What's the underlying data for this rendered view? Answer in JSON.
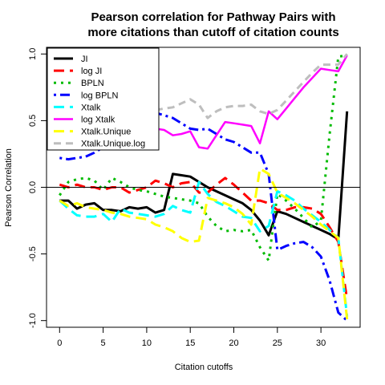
{
  "chart_data": {
    "type": "line",
    "title": "Pearson correlation for Pathway Pairs with",
    "title_line2": "more citations than cutoff of citation counts",
    "xlabel": "Citation cutoffs",
    "ylabel": "Pearson Correlation",
    "xlim": [
      -1.5,
      34.5
    ],
    "ylim": [
      -1.05,
      1.05
    ],
    "xticks": [
      0,
      5,
      10,
      15,
      20,
      25,
      30
    ],
    "yticks": [
      -1.0,
      -0.5,
      0.0,
      0.5,
      1.0
    ],
    "xtick_labels": [
      "0",
      "5",
      "10",
      "15",
      "20",
      "25",
      "30"
    ],
    "ytick_labels": [
      "-1.0",
      "-0.5",
      "0.0",
      "0.5",
      "1.0"
    ],
    "reference_line_y": 0,
    "legend_position": "top-left",
    "series": [
      {
        "name": "JI",
        "color": "#000000",
        "dash": "solid",
        "width": 3,
        "x": [
          0,
          1,
          2,
          3,
          4,
          5,
          6,
          7,
          8,
          9,
          10,
          11,
          12,
          13,
          14,
          15,
          16,
          17,
          18,
          19,
          20,
          21,
          22,
          23,
          24,
          25,
          26,
          27,
          28,
          29,
          30,
          31,
          32,
          33
        ],
        "y": [
          -0.1,
          -0.1,
          -0.16,
          -0.13,
          -0.12,
          -0.17,
          -0.17,
          -0.18,
          -0.15,
          -0.16,
          -0.15,
          -0.19,
          -0.17,
          0.1,
          0.09,
          0.08,
          0.04,
          0.0,
          -0.03,
          -0.06,
          -0.09,
          -0.12,
          -0.17,
          -0.25,
          -0.36,
          -0.18,
          -0.2,
          -0.23,
          -0.26,
          -0.29,
          -0.32,
          -0.35,
          -0.39,
          0.57
        ]
      },
      {
        "name": "log JI",
        "color": "#ff0000",
        "dash": "longdash",
        "width": 3,
        "x": [
          0,
          1,
          2,
          3,
          4,
          5,
          6,
          7,
          8,
          9,
          10,
          11,
          12,
          13,
          14,
          15,
          16,
          17,
          18,
          19,
          20,
          21,
          22,
          23,
          24,
          25,
          26,
          27,
          28,
          29,
          30,
          31,
          32,
          33
        ],
        "y": [
          0.02,
          0.0,
          0.02,
          0.0,
          0.0,
          -0.02,
          0.0,
          0.0,
          -0.04,
          -0.02,
          0.0,
          0.05,
          0.03,
          0.0,
          0.03,
          0.04,
          -0.04,
          -0.04,
          0.02,
          0.07,
          0.02,
          -0.04,
          -0.1,
          -0.1,
          -0.12,
          -0.17,
          -0.17,
          -0.15,
          -0.15,
          -0.16,
          -0.2,
          -0.3,
          -0.41,
          -0.84
        ]
      },
      {
        "name": "BPLN",
        "color": "#00bb00",
        "dash": "dot",
        "width": 3,
        "x": [
          0,
          1,
          2,
          3,
          4,
          5,
          6,
          7,
          8,
          9,
          10,
          11,
          12,
          13,
          14,
          15,
          16,
          17,
          18,
          19,
          20,
          21,
          22,
          23,
          24,
          25,
          26,
          27,
          28,
          29,
          30,
          31,
          32,
          33
        ],
        "y": [
          -0.06,
          0.04,
          0.06,
          0.07,
          0.05,
          -0.02,
          0.07,
          0.04,
          0.0,
          -0.02,
          -0.03,
          -0.05,
          -0.07,
          -0.08,
          -0.09,
          -0.1,
          -0.12,
          -0.22,
          -0.29,
          -0.33,
          -0.32,
          -0.33,
          -0.32,
          -0.45,
          -0.55,
          -0.05,
          -0.1,
          -0.16,
          -0.23,
          -0.3,
          -0.25,
          0.4,
          0.98,
          0.99
        ]
      },
      {
        "name": "log BPLN",
        "color": "#0000ff",
        "dash": "dotdash",
        "width": 3,
        "x": [
          0,
          1,
          2,
          3,
          4,
          5,
          6,
          7,
          8,
          9,
          10,
          11,
          12,
          13,
          14,
          15,
          16,
          17,
          18,
          19,
          20,
          21,
          22,
          23,
          24,
          25,
          26,
          27,
          28,
          29,
          30,
          31,
          32,
          33
        ],
        "y": [
          0.22,
          0.21,
          0.22,
          0.23,
          0.26,
          0.3,
          0.36,
          0.42,
          0.46,
          0.5,
          0.54,
          0.56,
          0.54,
          0.52,
          0.48,
          0.44,
          0.43,
          0.44,
          0.4,
          0.36,
          0.34,
          0.3,
          0.26,
          0.26,
          0.1,
          -0.47,
          -0.44,
          -0.42,
          -0.41,
          -0.45,
          -0.52,
          -0.7,
          -0.94,
          -1.0
        ]
      },
      {
        "name": "Xtalk",
        "color": "#00ffff",
        "dash": "longdash",
        "width": 3,
        "x": [
          0,
          1,
          2,
          3,
          4,
          5,
          6,
          7,
          8,
          9,
          10,
          11,
          12,
          13,
          14,
          15,
          16,
          17,
          18,
          19,
          20,
          21,
          22,
          23,
          24,
          25,
          26,
          27,
          28,
          29,
          30,
          31,
          32,
          33
        ],
        "y": [
          -0.1,
          -0.16,
          -0.21,
          -0.22,
          -0.22,
          -0.2,
          -0.26,
          -0.16,
          -0.19,
          -0.2,
          -0.21,
          -0.22,
          -0.2,
          -0.14,
          -0.17,
          -0.19,
          0.04,
          -0.05,
          -0.11,
          -0.14,
          -0.18,
          -0.22,
          -0.23,
          -0.33,
          -0.29,
          -0.03,
          -0.06,
          -0.1,
          -0.16,
          -0.21,
          -0.26,
          -0.32,
          -0.38,
          -0.97
        ]
      },
      {
        "name": "log Xtalk",
        "color": "#ff00ff",
        "dash": "solid",
        "width": 2.5,
        "x": [
          0,
          1,
          2,
          3,
          4,
          5,
          6,
          7,
          8,
          9,
          10,
          11,
          12,
          13,
          14,
          15,
          16,
          17,
          18,
          19,
          20,
          21,
          22,
          23,
          24,
          25,
          26,
          27,
          28,
          29,
          30,
          31,
          32,
          33
        ],
        "y": [
          0.55,
          0.55,
          0.55,
          0.54,
          0.54,
          0.54,
          0.53,
          0.53,
          0.53,
          0.53,
          0.51,
          0.44,
          0.43,
          0.39,
          0.4,
          0.42,
          0.3,
          0.29,
          0.39,
          0.49,
          0.48,
          0.47,
          0.46,
          0.33,
          0.57,
          0.51,
          0.59,
          0.67,
          0.75,
          0.82,
          0.89,
          0.88,
          0.87,
          0.99
        ]
      },
      {
        "name": "Xtalk.Unique",
        "color": "#ffff00",
        "dash": "longdash",
        "width": 3,
        "x": [
          0,
          1,
          2,
          3,
          4,
          5,
          6,
          7,
          8,
          9,
          10,
          11,
          12,
          13,
          14,
          15,
          16,
          17,
          18,
          19,
          20,
          21,
          22,
          23,
          24,
          25,
          26,
          27,
          28,
          29,
          30,
          31,
          32,
          33
        ],
        "y": [
          -0.1,
          -0.14,
          -0.12,
          -0.15,
          -0.16,
          -0.17,
          -0.19,
          -0.2,
          -0.22,
          -0.23,
          -0.24,
          -0.28,
          -0.3,
          -0.33,
          -0.38,
          -0.41,
          -0.4,
          -0.08,
          -0.1,
          -0.12,
          -0.15,
          -0.2,
          -0.28,
          0.14,
          0.1,
          -0.04,
          -0.08,
          -0.12,
          -0.17,
          -0.22,
          -0.28,
          -0.33,
          -0.38,
          -0.99
        ]
      },
      {
        "name": "Xtalk.Unique.log",
        "color": "#bebebe",
        "dash": "dash",
        "width": 3,
        "x": [
          0,
          1,
          2,
          3,
          4,
          5,
          6,
          7,
          8,
          9,
          10,
          11,
          12,
          13,
          14,
          15,
          16,
          17,
          18,
          19,
          20,
          21,
          22,
          23,
          24,
          25,
          26,
          27,
          28,
          29,
          30,
          31,
          32,
          33
        ],
        "y": [
          0.55,
          0.55,
          0.55,
          0.55,
          0.55,
          0.55,
          0.55,
          0.55,
          0.55,
          0.56,
          0.57,
          0.58,
          0.59,
          0.6,
          0.63,
          0.66,
          0.62,
          0.52,
          0.57,
          0.6,
          0.61,
          0.61,
          0.62,
          0.57,
          0.55,
          0.58,
          0.65,
          0.72,
          0.79,
          0.86,
          0.92,
          0.92,
          0.92,
          1.0
        ]
      }
    ]
  }
}
